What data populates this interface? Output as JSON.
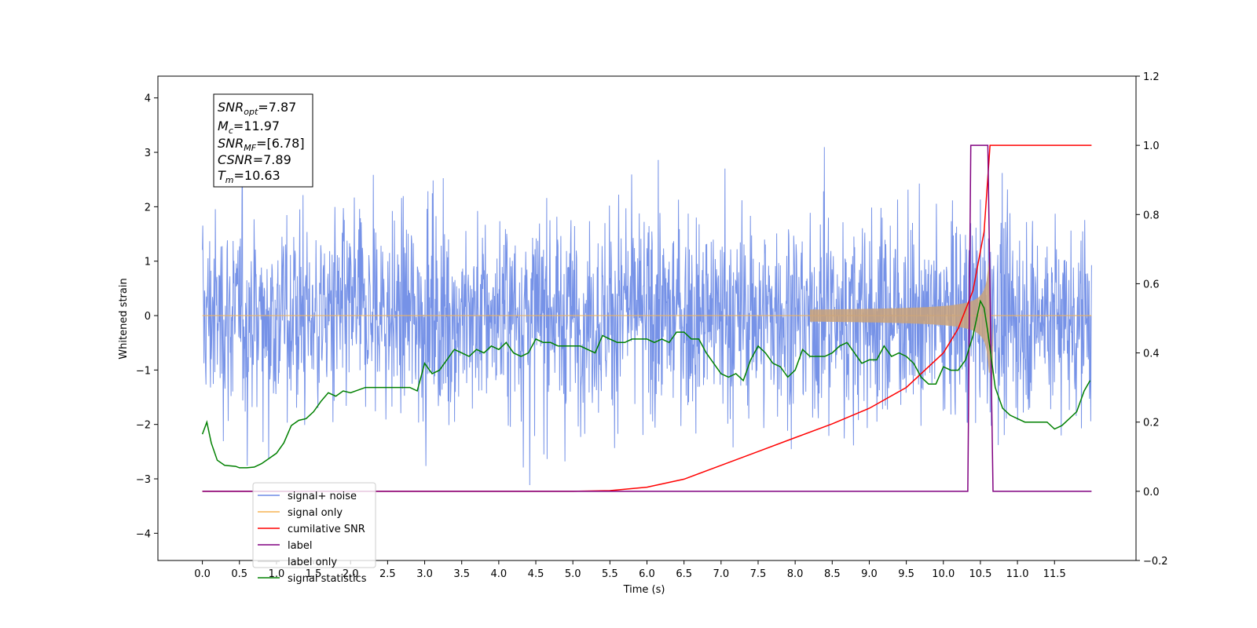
{
  "chart_data": {
    "type": "line",
    "xlabel": "Time (s)",
    "ylabel": "Whitened strain",
    "xlim": [
      -0.6,
      12.6
    ],
    "ylim": [
      -4.5,
      4.4
    ],
    "ylim_right": [
      -0.2,
      1.2
    ],
    "x_ticks": [
      "0.0",
      "0.5",
      "1.0",
      "1.5",
      "2.0",
      "2.5",
      "3.0",
      "3.5",
      "4.0",
      "4.5",
      "5.0",
      "5.5",
      "6.0",
      "6.5",
      "7.0",
      "7.5",
      "8.0",
      "8.5",
      "9.0",
      "9.5",
      "10.0",
      "10.5",
      "11.0",
      "11.5"
    ],
    "y_ticks_left": [
      "4",
      "3",
      "2",
      "1",
      "0",
      "−1",
      "−2",
      "−3",
      "−4"
    ],
    "y_ticks_right": [
      "1.2",
      "1.0",
      "0.8",
      "0.6",
      "0.4",
      "0.2",
      "0.0",
      "−0.2"
    ],
    "grid": false,
    "legend_position": "lower-left",
    "stats_box": {
      "snr_opt": {
        "base": "SNR",
        "sub": "opt",
        "value": "=7.87"
      },
      "mc": {
        "base": "M",
        "sub": "c",
        "value": "=11.97"
      },
      "snr_mf": {
        "base": "SNR",
        "sub": "MF",
        "value": "=[6.78]"
      },
      "csnr": {
        "base": "CSNR",
        "sub": "",
        "value": "=7.89"
      },
      "tm": {
        "base": "T",
        "sub": "m",
        "value": "=10.63"
      }
    },
    "series": [
      {
        "name": "signal+ noise",
        "color": "#6f8ce6",
        "axis": "left",
        "style": "dense noise, roughly ±2.5 with spikes to ±4",
        "x_range": [
          0.0,
          12.0
        ]
      },
      {
        "name": "signal only",
        "color": "#f5b453",
        "axis": "left",
        "style": "chirp",
        "x_range": [
          0.0,
          12.0
        ],
        "merger_time": 10.63
      },
      {
        "name": "cumilative SNR",
        "color": "#ff0000",
        "axis": "right",
        "x": [
          0.0,
          5.0,
          5.5,
          6.0,
          6.5,
          7.0,
          7.5,
          8.0,
          8.5,
          9.0,
          9.5,
          10.0,
          10.2,
          10.4,
          10.55,
          10.63,
          12.0
        ],
        "y": [
          0.0,
          0.0,
          0.002,
          0.012,
          0.035,
          0.075,
          0.115,
          0.155,
          0.195,
          0.24,
          0.3,
          0.4,
          0.47,
          0.58,
          0.75,
          1.0,
          1.0
        ]
      },
      {
        "name": "label",
        "color": "#800080",
        "axis": "right",
        "x": [
          0.0,
          10.33,
          10.37,
          10.6,
          10.67,
          12.0
        ],
        "y": [
          0.0,
          0.0,
          1.0,
          1.0,
          0.0,
          0.0
        ]
      },
      {
        "name": "label only",
        "color": "#d8d8d8",
        "axis": "right",
        "x": [],
        "y": []
      },
      {
        "name": "signal statistics",
        "color": "#008000",
        "axis": "right",
        "x": [
          0.0,
          0.06,
          0.12,
          0.2,
          0.3,
          0.45,
          0.5,
          0.6,
          0.7,
          0.8,
          0.9,
          1.0,
          1.1,
          1.2,
          1.3,
          1.4,
          1.5,
          1.6,
          1.7,
          1.8,
          1.9,
          2.0,
          2.2,
          2.4,
          2.6,
          2.8,
          2.9,
          3.0,
          3.1,
          3.2,
          3.3,
          3.4,
          3.5,
          3.6,
          3.7,
          3.8,
          3.9,
          4.0,
          4.1,
          4.2,
          4.3,
          4.4,
          4.5,
          4.6,
          4.7,
          4.8,
          4.9,
          5.0,
          5.1,
          5.2,
          5.3,
          5.4,
          5.5,
          5.6,
          5.7,
          5.8,
          5.9,
          6.0,
          6.1,
          6.2,
          6.3,
          6.4,
          6.5,
          6.6,
          6.7,
          6.8,
          6.9,
          7.0,
          7.1,
          7.2,
          7.3,
          7.4,
          7.5,
          7.6,
          7.7,
          7.8,
          7.9,
          8.0,
          8.1,
          8.2,
          8.3,
          8.4,
          8.5,
          8.6,
          8.7,
          8.8,
          8.9,
          9.0,
          9.1,
          9.2,
          9.3,
          9.4,
          9.5,
          9.6,
          9.7,
          9.8,
          9.9,
          10.0,
          10.1,
          10.2,
          10.3,
          10.4,
          10.5,
          10.55,
          10.6,
          10.65,
          10.7,
          10.8,
          10.9,
          11.0,
          11.1,
          11.2,
          11.3,
          11.4,
          11.5,
          11.6,
          11.7,
          11.8,
          11.9,
          11.98
        ],
        "y": [
          0.165,
          0.2,
          0.14,
          0.09,
          0.075,
          0.072,
          0.068,
          0.068,
          0.07,
          0.08,
          0.095,
          0.11,
          0.14,
          0.19,
          0.205,
          0.21,
          0.23,
          0.26,
          0.285,
          0.275,
          0.29,
          0.285,
          0.3,
          0.3,
          0.3,
          0.3,
          0.29,
          0.37,
          0.34,
          0.35,
          0.38,
          0.41,
          0.4,
          0.39,
          0.41,
          0.4,
          0.42,
          0.41,
          0.43,
          0.4,
          0.39,
          0.4,
          0.44,
          0.43,
          0.43,
          0.42,
          0.42,
          0.42,
          0.42,
          0.41,
          0.4,
          0.45,
          0.44,
          0.43,
          0.43,
          0.44,
          0.44,
          0.44,
          0.43,
          0.44,
          0.43,
          0.46,
          0.46,
          0.44,
          0.44,
          0.4,
          0.37,
          0.34,
          0.33,
          0.34,
          0.32,
          0.38,
          0.42,
          0.4,
          0.37,
          0.36,
          0.33,
          0.35,
          0.41,
          0.39,
          0.39,
          0.39,
          0.4,
          0.42,
          0.43,
          0.4,
          0.37,
          0.38,
          0.38,
          0.42,
          0.39,
          0.4,
          0.39,
          0.37,
          0.33,
          0.31,
          0.31,
          0.36,
          0.35,
          0.35,
          0.38,
          0.45,
          0.55,
          0.53,
          0.46,
          0.38,
          0.3,
          0.24,
          0.22,
          0.21,
          0.2,
          0.2,
          0.2,
          0.2,
          0.18,
          0.19,
          0.21,
          0.23,
          0.29,
          0.32
        ]
      }
    ]
  }
}
